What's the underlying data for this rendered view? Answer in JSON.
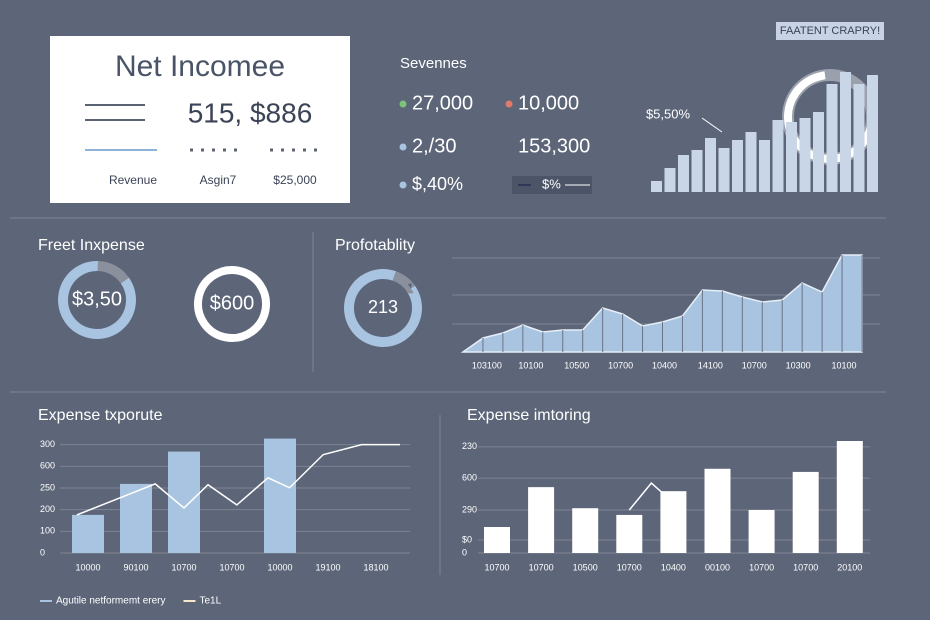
{
  "badge": "FAATENT CRAPRY!",
  "net_income": {
    "title": "Net Incomee",
    "value": "515, $886",
    "labels": [
      "Revenue",
      "Asgin7",
      "$25,000"
    ]
  },
  "stats": {
    "title": "Sevennes",
    "items": [
      {
        "text": "27,000",
        "color": "#7cc47a"
      },
      {
        "text": "10,000",
        "color": "#e07a6a"
      },
      {
        "text": "2,/30",
        "color": "#a9c4e0"
      },
      {
        "text": "153,300"
      },
      {
        "text": "$,40%",
        "color": "#a9c4e0"
      },
      {
        "text": "$%"
      }
    ]
  },
  "sections": {
    "expense": "Freet Inxpense",
    "profit": "Profotablity"
  },
  "donuts": [
    {
      "label": "$3,50",
      "values": [
        85,
        15
      ],
      "colors": [
        "#a9c4e0",
        "#8a909c"
      ]
    },
    {
      "label": "$600",
      "values": [
        100
      ],
      "colors": [
        "#ffffff"
      ]
    },
    {
      "label": "213",
      "values": [
        90,
        10
      ],
      "colors": [
        "#a9c4e0",
        "#8a909c"
      ]
    }
  ],
  "chart_data": [
    {
      "type": "bar",
      "annotation": "$5,50%",
      "values": [
        11,
        24,
        37,
        42,
        54,
        44,
        52,
        60,
        52,
        72,
        70,
        74,
        80,
        108,
        120,
        108,
        117
      ],
      "color": "#c9d6e8",
      "ylim": [
        0,
        130
      ]
    },
    {
      "type": "area",
      "x": [
        0,
        1,
        2,
        3,
        4,
        5,
        6,
        7,
        8,
        9,
        10,
        11,
        12,
        13,
        14,
        15,
        16,
        17,
        18,
        19,
        20
      ],
      "values": [
        0,
        14,
        19,
        27,
        20,
        22,
        22,
        44,
        38,
        26,
        30,
        36,
        62,
        61,
        55,
        50,
        52,
        69,
        60,
        97,
        97
      ],
      "xlim": [
        0,
        20
      ],
      "xticks": [
        {
          "value": 1.2,
          "label": "103100"
        },
        {
          "value": 3.4,
          "label": "10100"
        },
        {
          "value": 5.7,
          "label": "10500"
        },
        {
          "value": 7.9,
          "label": "10700"
        },
        {
          "value": 10.1,
          "label": "10400"
        },
        {
          "value": 12.4,
          "label": "14100"
        },
        {
          "value": 14.6,
          "label": "10700"
        },
        {
          "value": 16.8,
          "label": "10300"
        },
        {
          "value": 19.1,
          "label": "10100"
        }
      ],
      "ylim": [
        0,
        100
      ],
      "grid_values": [
        28,
        57,
        94
      ],
      "color": "#a9c4e0"
    },
    {
      "type": "bar-line",
      "title": "Expense txporute",
      "categories": [
        "10000",
        "90100",
        "10700",
        "10700",
        "10000",
        "19100",
        "18100"
      ],
      "ylim": [
        0,
        540
      ],
      "yticks": [
        0,
        100,
        200,
        {
          "value": 300,
          "label": "250"
        },
        {
          "value": 400,
          "label": "600"
        },
        {
          "value": 500,
          "label": "300"
        }
      ],
      "grid": true,
      "series": [
        {
          "name": "Agutile netformemt erery",
          "type": "bar",
          "color": "#a9c4e0",
          "values": [
            176,
            319,
            468,
            null,
            528,
            null,
            null
          ]
        },
        {
          "name": "Te1L",
          "type": "line",
          "color": "#f4e9c8",
          "x": [
            -0.23,
            1.4,
            2.0,
            2.5,
            3.1,
            3.75,
            4.2,
            4.9,
            5.7,
            6.5
          ],
          "values": [
            176,
            319,
            208,
            315,
            222,
            347,
            301,
            454,
            500,
            500
          ]
        }
      ]
    },
    {
      "type": "bar-line",
      "title": "Expense imtoring",
      "categories": [
        "10700",
        "10700",
        "10500",
        "10700",
        "10400",
        "00100",
        "10700",
        "10700",
        "20100"
      ],
      "ylim": [
        0,
        250
      ],
      "yticks": [
        0,
        {
          "value": 29,
          "label": "$0"
        },
        {
          "value": 96,
          "label": "290"
        },
        {
          "value": 167,
          "label": "600"
        },
        {
          "value": 237,
          "label": "230"
        }
      ],
      "grid": true,
      "series": [
        {
          "type": "bar",
          "color": "#ffffff",
          "values": [
            58,
            147,
            100,
            85,
            138,
            188,
            96,
            181,
            250
          ]
        },
        {
          "type": "line",
          "color": "#ffffff",
          "x": [
            3,
            3.5,
            3.8
          ],
          "values": [
            96,
            156,
            130
          ]
        }
      ]
    }
  ]
}
